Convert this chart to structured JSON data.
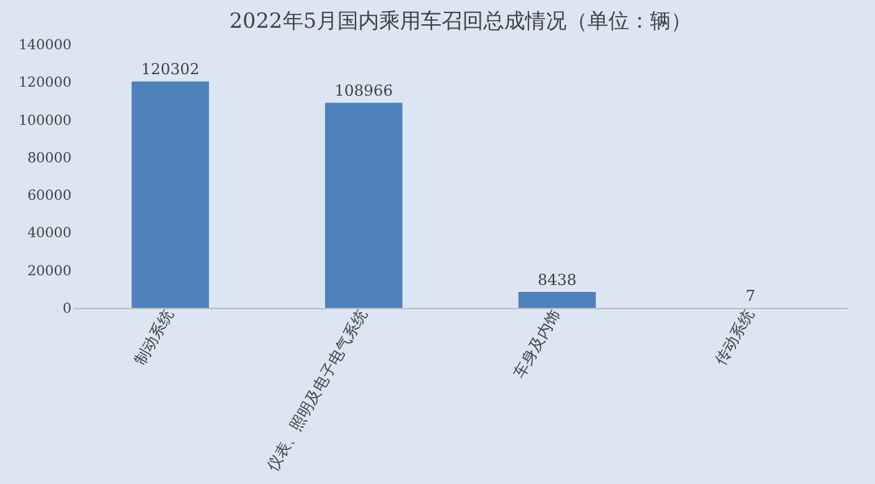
{
  "chart_data": {
    "type": "bar",
    "title": "2022年5月国内乘用车召回总成情况（单位：辆）",
    "categories": [
      "制动系统",
      "仪表、照明及电子电气系统",
      "车身及内饰",
      "传动系统"
    ],
    "values": [
      120302,
      108966,
      8438,
      7
    ],
    "color": "#4f81bd",
    "ylim": [
      0,
      140000
    ],
    "yticks": [
      0,
      20000,
      40000,
      60000,
      80000,
      100000,
      120000,
      140000
    ],
    "grid": false,
    "data_labels": true
  }
}
